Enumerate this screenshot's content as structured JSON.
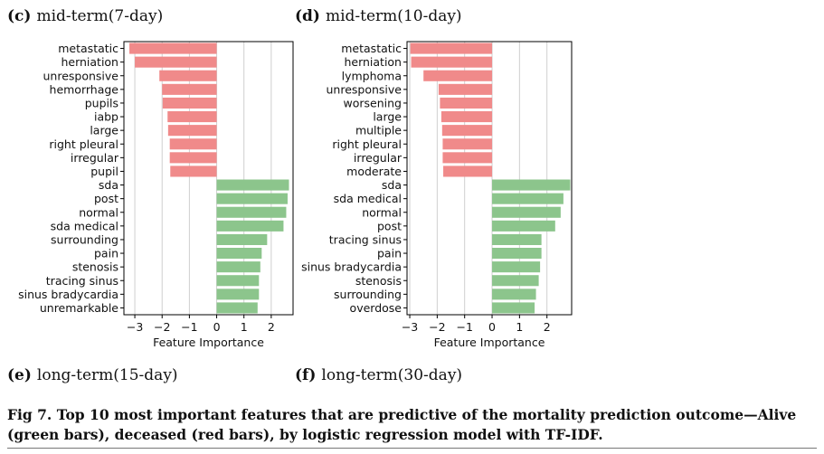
{
  "panels": {
    "c": {
      "letter": "(c)",
      "label": "mid-term(7-day)"
    },
    "d": {
      "letter": "(d)",
      "label": "mid-term(10-day)"
    },
    "e": {
      "letter": "(e)",
      "label": "long-term(15-day)"
    },
    "f": {
      "letter": "(f)",
      "label": "long-term(30-day)"
    }
  },
  "caption": "Fig 7. Top 10 most important features that are predictive of the mortality prediction outcome—Alive (green bars), deceased (red bars), by logistic regression model with TF-IDF.",
  "colors": {
    "negative": "#f08a8a",
    "positive": "#8cc58c",
    "grid": "#cfcfcf"
  },
  "chart_data": [
    {
      "type": "bar",
      "orientation": "horizontal",
      "title": "mid-term(7-day)",
      "xlabel": "Feature Importance",
      "ylabel": "",
      "xlim": [
        -3.4,
        2.8
      ],
      "xticks": [
        -3,
        -2,
        -1,
        0,
        1,
        2
      ],
      "xtick_labels": [
        "−3",
        "−2",
        "−1",
        "0",
        "1",
        "2"
      ],
      "grid": "vertical",
      "categories": [
        "metastatic",
        "herniation",
        "unresponsive",
        "hemorrhage",
        "pupils",
        "iabp",
        "large",
        "right pleural",
        "irregular",
        "pupil",
        "sda",
        "post",
        "normal",
        "sda medical",
        "surrounding",
        "pain",
        "stenosis",
        "tracing sinus",
        "sinus bradycardia",
        "unremarkable"
      ],
      "values": [
        -3.2,
        -3.0,
        -2.1,
        -2.0,
        -1.98,
        -1.8,
        -1.78,
        -1.72,
        -1.72,
        -1.7,
        2.65,
        2.6,
        2.55,
        2.45,
        1.85,
        1.65,
        1.6,
        1.55,
        1.55,
        1.5
      ]
    },
    {
      "type": "bar",
      "orientation": "horizontal",
      "title": "mid-term(10-day)",
      "xlabel": "Feature Importance",
      "ylabel": "",
      "xlim": [
        -3.1,
        2.9
      ],
      "xticks": [
        -3,
        -2,
        -1,
        0,
        1,
        2
      ],
      "xtick_labels": [
        "−3",
        "−2",
        "−1",
        "0",
        "1",
        "2"
      ],
      "grid": "vertical",
      "categories": [
        "metastatic",
        "herniation",
        "lymphoma",
        "unresponsive",
        "worsening",
        "large",
        "multiple",
        "right pleural",
        "irregular",
        "moderate",
        "sda",
        "sda medical",
        "normal",
        "post",
        "tracing sinus",
        "pain",
        "sinus bradycardia",
        "stenosis",
        "surrounding",
        "overdose"
      ],
      "values": [
        -2.98,
        -2.95,
        -2.5,
        -1.95,
        -1.9,
        -1.85,
        -1.82,
        -1.8,
        -1.8,
        -1.78,
        2.85,
        2.6,
        2.5,
        2.3,
        1.8,
        1.8,
        1.75,
        1.7,
        1.6,
        1.55
      ]
    }
  ]
}
